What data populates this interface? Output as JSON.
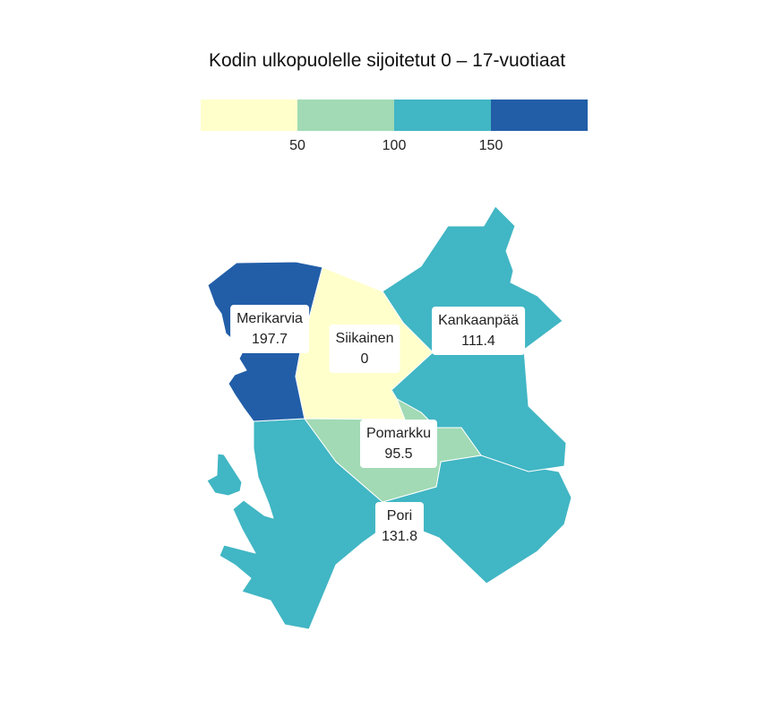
{
  "title": "Kodin ulkopuolelle sijoitetut 0 – 17-vuotiaat",
  "legend": {
    "colors": [
      "#ffffcc",
      "#a1dab4",
      "#41b6c4",
      "#225ea8"
    ],
    "ticks": [
      "50",
      "100",
      "150"
    ]
  },
  "regions": [
    {
      "name": "Merikarvia",
      "value": "197.7",
      "color": "#225ea8"
    },
    {
      "name": "Siikainen",
      "value": "0",
      "color": "#ffffcc"
    },
    {
      "name": "Kankaanpää",
      "value": "111.4",
      "color": "#41b6c4"
    },
    {
      "name": "Pomarkku",
      "value": "95.5",
      "color": "#a1dab4"
    },
    {
      "name": "Pori",
      "value": "131.8",
      "color": "#41b6c4"
    }
  ]
}
